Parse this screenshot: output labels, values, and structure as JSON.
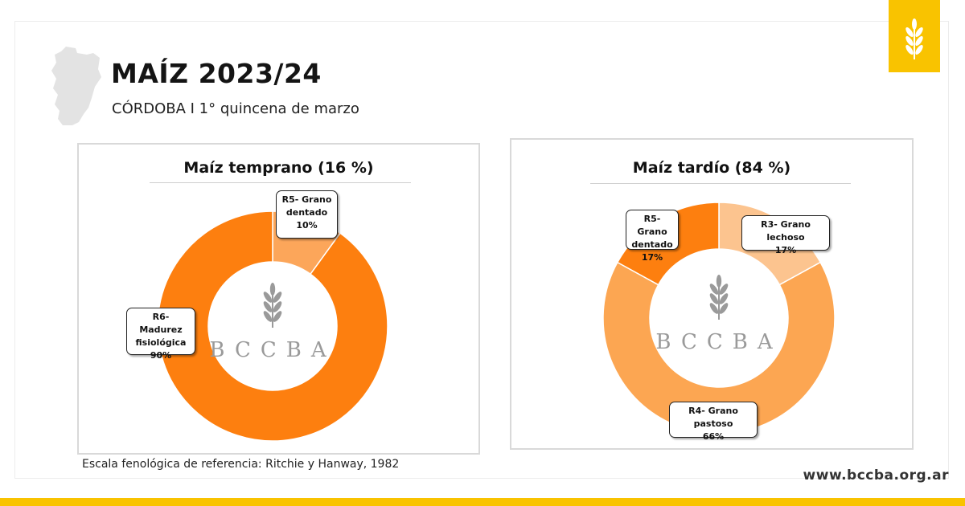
{
  "header": {
    "title": "MAÍZ 2023/24",
    "subtitle": "CÓRDOBA I 1° quincena de marzo"
  },
  "watermark": {
    "text": "BCCBA"
  },
  "chart_data": [
    {
      "type": "pie",
      "title": "Maíz temprano (16 %)",
      "slices": [
        {
          "label": "R5- Grano dentado",
          "value": 10,
          "value_label": "10%",
          "color": "#fca65a"
        },
        {
          "label": "R6- Madurez fisiológica",
          "value": 90,
          "value_label": "90%",
          "color": "#fd7f0f"
        }
      ]
    },
    {
      "type": "pie",
      "title": "Maíz tardío (84 %)",
      "slices": [
        {
          "label": "R3- Grano lechoso",
          "value": 17,
          "value_label": "17%",
          "color": "#fcc48f"
        },
        {
          "label": "R4- Grano pastoso",
          "value": 66,
          "value_label": "66%",
          "color": "#fca652"
        },
        {
          "label": "R5- Grano dentado",
          "value": 17,
          "value_label": "17%",
          "color": "#fd7f0f"
        }
      ]
    }
  ],
  "footer": {
    "note": "Escala fenológica de referencia: Ritchie y Hanway, 1982",
    "website": "www.bccba.org.ar"
  },
  "colors": {
    "accent_yellow": "#f9c300",
    "province_gray": "#e3e3e3",
    "watermark_gray": "#9a9a9a"
  }
}
